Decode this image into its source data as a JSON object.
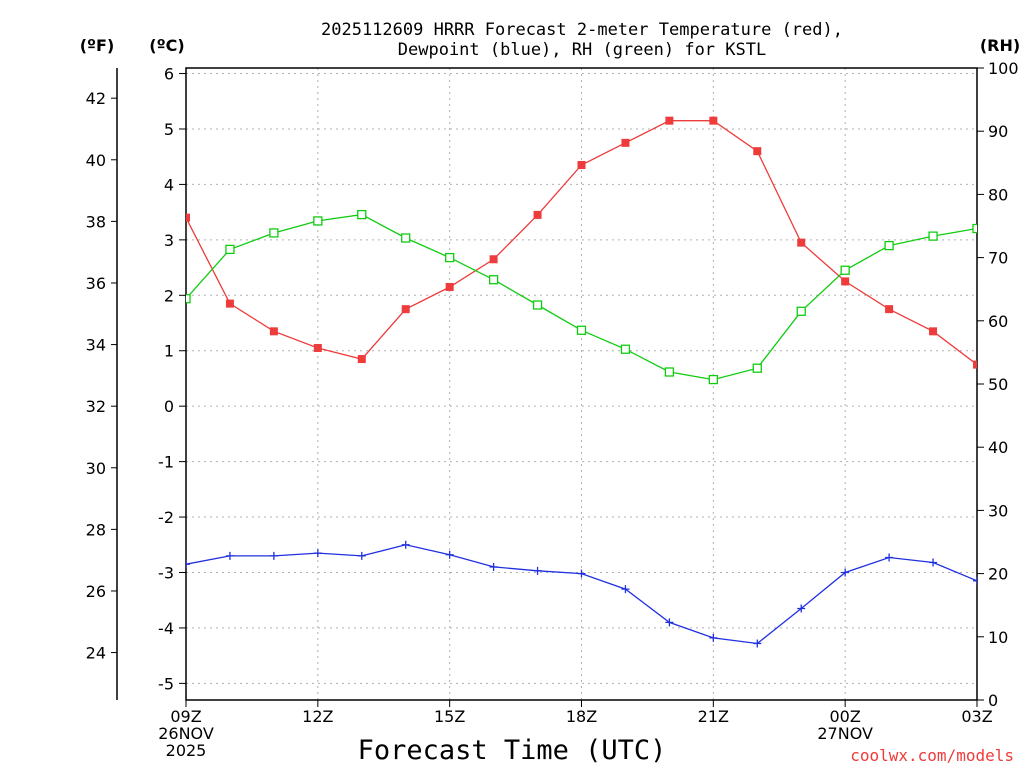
{
  "chart_data": {
    "type": "line",
    "title_line1": "2025112609 HRRR Forecast 2-meter Temperature (red),",
    "title_line2": "Dewpoint (blue), RH (green) for KSTL",
    "xlabel": "Forecast Time (UTC)",
    "unit_f": "(ºF)",
    "unit_c": "(ºC)",
    "unit_rh": "(RH)",
    "credit": "coolwx.com/models",
    "x_hours": [
      0,
      1,
      2,
      3,
      4,
      5,
      6,
      7,
      8,
      9,
      10,
      11,
      12,
      13,
      14,
      15,
      16,
      17,
      18
    ],
    "x_range_hours": [
      0,
      18
    ],
    "x_ticks": [
      {
        "hour": 0,
        "lines": [
          "09Z",
          "26NOV",
          "2025"
        ]
      },
      {
        "hour": 3,
        "lines": [
          "12Z"
        ]
      },
      {
        "hour": 6,
        "lines": [
          "15Z"
        ]
      },
      {
        "hour": 9,
        "lines": [
          "18Z"
        ]
      },
      {
        "hour": 12,
        "lines": [
          "21Z"
        ]
      },
      {
        "hour": 15,
        "lines": [
          "00Z",
          "27NOV"
        ]
      },
      {
        "hour": 18,
        "lines": [
          "03Z"
        ]
      }
    ],
    "c_axis": {
      "range": [
        -5.3,
        6.1
      ],
      "ticks": [
        "-5",
        "-4",
        "-3",
        "-2",
        "-1",
        "0",
        "1",
        "2",
        "3",
        "4",
        "5",
        "6"
      ]
    },
    "f_axis": {
      "range": [
        22.46,
        42.98
      ],
      "ticks": [
        "24",
        "26",
        "28",
        "30",
        "32",
        "34",
        "36",
        "38",
        "40",
        "42"
      ]
    },
    "rh_axis": {
      "range": [
        0,
        100
      ],
      "ticks": [
        "0",
        "10",
        "20",
        "30",
        "40",
        "50",
        "60",
        "70",
        "80",
        "90",
        "100"
      ]
    },
    "series": [
      {
        "name": "Temperature",
        "unit": "C",
        "color": "#ee3b3b",
        "marker": "filled-square",
        "values": [
          3.4,
          1.85,
          1.35,
          1.05,
          0.85,
          1.75,
          2.15,
          2.65,
          3.45,
          4.35,
          4.75,
          5.15,
          5.15,
          4.6,
          2.95,
          2.25,
          1.75,
          1.35,
          0.75
        ]
      },
      {
        "name": "Dewpoint",
        "unit": "C",
        "color": "#2030e0",
        "marker": "plus",
        "values": [
          -2.85,
          -2.7,
          -2.7,
          -2.65,
          -2.7,
          -2.5,
          -2.68,
          -2.9,
          -2.97,
          -3.02,
          -3.3,
          -3.9,
          -4.18,
          -4.28,
          -3.65,
          -3.0,
          -2.73,
          -2.82,
          -3.15
        ]
      },
      {
        "name": "RH",
        "unit": "%",
        "color": "#10cc10",
        "marker": "open-square",
        "values": [
          63.5,
          71.3,
          73.9,
          75.8,
          76.8,
          73.1,
          70.0,
          66.5,
          62.5,
          58.5,
          55.5,
          51.9,
          50.7,
          52.5,
          61.5,
          68.0,
          71.9,
          73.4,
          74.6
        ]
      }
    ]
  }
}
